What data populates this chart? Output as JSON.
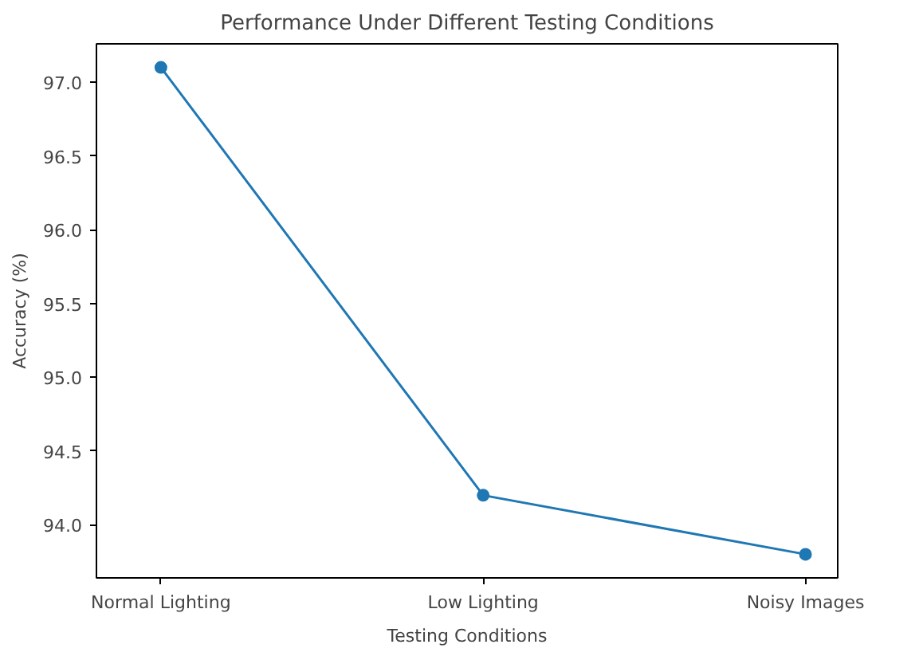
{
  "chart_data": {
    "type": "line",
    "title": "Performance Under Different Testing Conditions",
    "xlabel": "Testing Conditions",
    "ylabel": "Accuracy (%)",
    "categories": [
      "Normal Lighting",
      "Low Lighting",
      "Noisy Images"
    ],
    "series": [
      {
        "color": "#1f77b4",
        "values": [
          97.1,
          94.2,
          93.8
        ]
      }
    ],
    "ylim": [
      93.64,
      97.26
    ],
    "yticks": [
      {
        "value": 94.0,
        "label": "94.0"
      },
      {
        "value": 94.5,
        "label": "94.5"
      },
      {
        "value": 95.0,
        "label": "95.0"
      },
      {
        "value": 95.5,
        "label": "95.5"
      },
      {
        "value": 96.0,
        "label": "96.0"
      },
      {
        "value": 96.5,
        "label": "96.5"
      },
      {
        "value": 97.0,
        "label": "97.0"
      }
    ],
    "marker": "circle",
    "grid": false
  }
}
